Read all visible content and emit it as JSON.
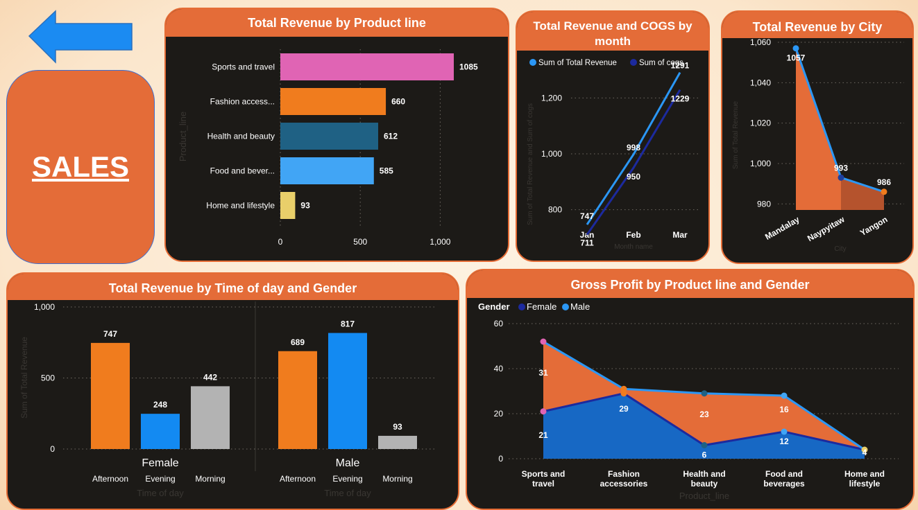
{
  "page": {
    "title": "SALES",
    "back_icon": "arrow-left-icon"
  },
  "colors": {
    "accent": "#e46c38",
    "card_bg": "#1c1a17"
  },
  "chart_data": [
    {
      "id": "product_line",
      "type": "bar",
      "orientation": "horizontal",
      "title": "Total Revenue by Product line",
      "ylabel": "Product_line",
      "categories": [
        "Sports and travel",
        "Fashion access...",
        "Health and beauty",
        "Food and bever...",
        "Home and lifestyle"
      ],
      "values": [
        1085,
        660,
        612,
        585,
        93
      ],
      "value_labels": [
        "1085",
        "660",
        "612",
        "585",
        "93"
      ],
      "colors": [
        "#e064b4",
        "#f07c1e",
        "#1f6184",
        "#41a5f5",
        "#e9cf6a"
      ],
      "xticks": [
        {
          "v": 0,
          "label": "0"
        },
        {
          "v": 500,
          "label": "500"
        },
        {
          "v": 1000,
          "label": "1,000"
        }
      ],
      "xlim": [
        0,
        1085
      ]
    },
    {
      "id": "revenue_cogs",
      "type": "line",
      "title": "Total Revenue and COGS by month",
      "xlabel": "Month name",
      "ylabel": "Sum of Total Revenue and Sum of cogs",
      "categories": [
        "Jan",
        "Feb",
        "Mar"
      ],
      "series": [
        {
          "name": "Sum of Total Revenue",
          "values": [
            747,
            998,
            1291
          ],
          "labels": [
            "747",
            "998",
            "1291"
          ],
          "color": "#2b97f5"
        },
        {
          "name": "Sum of cogs",
          "values": [
            711,
            950,
            1229
          ],
          "labels": [
            "711",
            "950",
            "1229"
          ],
          "color": "#1c2a9e"
        }
      ],
      "yticks": [
        {
          "v": 800,
          "label": "800"
        },
        {
          "v": 1000,
          "label": "1,000"
        },
        {
          "v": 1200,
          "label": "1,200"
        }
      ],
      "ylim": [
        700,
        1300
      ],
      "legend": "top"
    },
    {
      "id": "city",
      "type": "area",
      "title": "Total Revenue by City",
      "xlabel": "City",
      "ylabel": "Sum of Total Revenue",
      "categories": [
        "Mandalay",
        "Naypyitaw",
        "Yangon"
      ],
      "values": [
        1057,
        993,
        986
      ],
      "labels": [
        "1057",
        "993",
        "986"
      ],
      "point_colors": [
        "#2b97f5",
        "#1f3f9e",
        "#f07c1e"
      ],
      "yticks": [
        {
          "v": 980,
          "label": "980"
        },
        {
          "v": 1000,
          "label": "1,000"
        },
        {
          "v": 1020,
          "label": "1,020"
        },
        {
          "v": 1040,
          "label": "1,040"
        },
        {
          "v": 1060,
          "label": "1,060"
        }
      ],
      "ylim": [
        977,
        1060
      ]
    },
    {
      "id": "time_gender",
      "type": "bar",
      "title": "Total Revenue by Time of day and Gender",
      "xlabel": "Time of day",
      "ylabel": "Sum of Total Revenue",
      "groups": [
        {
          "name": "Female",
          "categories": [
            "Afternoon",
            "Evening",
            "Morning"
          ],
          "values": [
            747,
            248,
            442
          ],
          "labels": [
            "747",
            "248",
            "442"
          ]
        },
        {
          "name": "Male",
          "categories": [
            "Afternoon",
            "Evening",
            "Morning"
          ],
          "values": [
            689,
            817,
            93
          ],
          "labels": [
            "689",
            "817",
            "93"
          ]
        }
      ],
      "colors": [
        "#f07c1e",
        "#138af2",
        "#b3b3b3"
      ],
      "yticks": [
        {
          "v": 0,
          "label": "0"
        },
        {
          "v": 500,
          "label": "500"
        },
        {
          "v": 1000,
          "label": "1,000"
        }
      ],
      "ylim": [
        0,
        1000
      ]
    },
    {
      "id": "gross_profit",
      "type": "area",
      "title": "Gross Profit by Product line and Gender",
      "xlabel": "Product_line",
      "legend_title": "Gender",
      "categories": [
        [
          "Sports and",
          "travel"
        ],
        [
          "Fashion",
          "accessories"
        ],
        [
          "Health and",
          "beauty"
        ],
        [
          "Food and",
          "beverages"
        ],
        [
          "Home and",
          "lifestyle"
        ]
      ],
      "series": [
        {
          "name": "Female",
          "values": [
            21,
            29,
            6,
            12,
            4
          ],
          "labels": [
            "21",
            "29",
            "6",
            "12",
            "4"
          ],
          "color": "#1c2a9e"
        },
        {
          "name": "Male",
          "values": [
            31,
            2,
            23,
            16,
            0
          ],
          "labels": [
            "31",
            "",
            "23",
            "16",
            ""
          ],
          "color": "#2b97f5"
        }
      ],
      "stacked": true,
      "point_colors": [
        "#e064b4",
        "#f07c1e",
        "#1f6184",
        "#41a5f5",
        "#e9cf6a"
      ],
      "yticks": [
        {
          "v": 0,
          "label": "0"
        },
        {
          "v": 20,
          "label": "20"
        },
        {
          "v": 40,
          "label": "40"
        },
        {
          "v": 60,
          "label": "60"
        }
      ],
      "ylim": [
        0,
        60
      ],
      "legend": "top-left"
    }
  ]
}
